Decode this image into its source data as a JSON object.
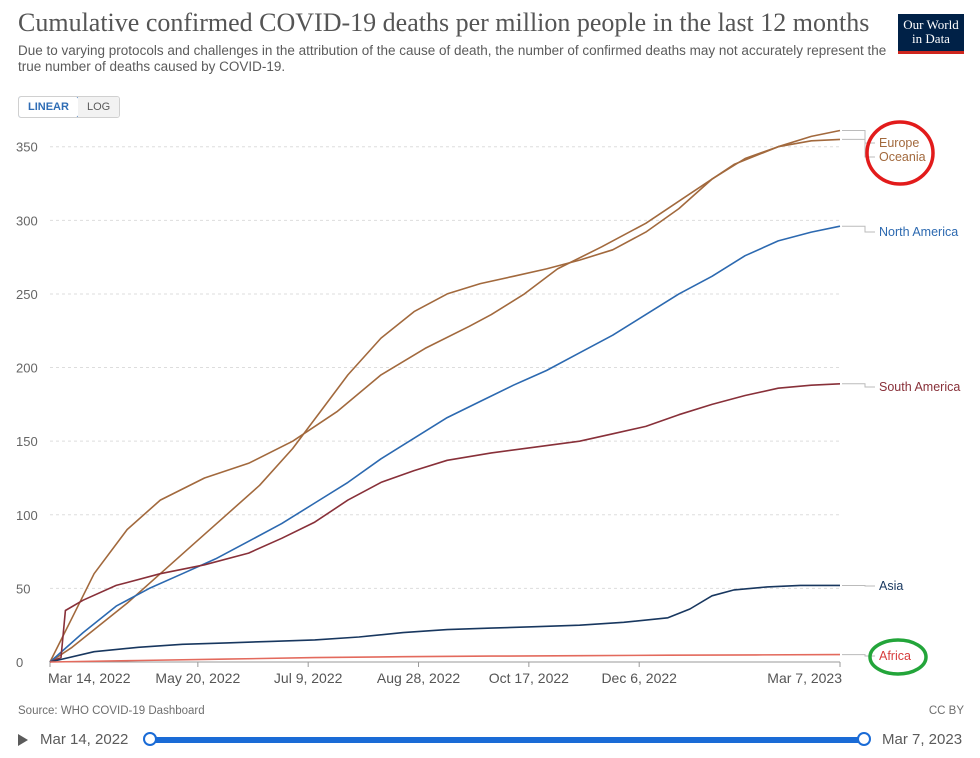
{
  "header": {
    "title": "Cumulative confirmed COVID-19 deaths per million people in the last 12 months",
    "subtitle": "Due to varying protocols and challenges in the attribution of the cause of death, the number of confirmed deaths may not accurately represent the true number of deaths caused by COVID-19.",
    "logo_line1": "Our World",
    "logo_line2": "in Data"
  },
  "controls": {
    "linear_label": "LINEAR",
    "log_label": "LOG",
    "active": "linear"
  },
  "footer": {
    "source": "Source: WHO COVID-19 Dashboard",
    "license": "CC BY"
  },
  "timeline": {
    "start_label": "Mar 14, 2022",
    "end_label": "Mar 7, 2023",
    "start_value": 0,
    "end_value": 1
  },
  "annotations": {
    "circle_red_color": "#e21b1b",
    "circle_green_color": "#23a53a"
  },
  "chart_data": {
    "type": "line",
    "title": "Cumulative confirmed COVID-19 deaths per million people in the last 12 months",
    "xlabel": "",
    "ylabel": "",
    "xlim": [
      0,
      358
    ],
    "ylim": [
      0,
      360
    ],
    "grid": true,
    "y_ticks": [
      0,
      50,
      100,
      150,
      200,
      250,
      300,
      350
    ],
    "x_ticks": [
      {
        "day": 0,
        "label": "Mar 14, 2022"
      },
      {
        "day": 67,
        "label": "May 20, 2022"
      },
      {
        "day": 117,
        "label": "Jul 9, 2022"
      },
      {
        "day": 167,
        "label": "Aug 28, 2022"
      },
      {
        "day": 217,
        "label": "Oct 17, 2022"
      },
      {
        "day": 267,
        "label": "Dec 6, 2022"
      },
      {
        "day": 358,
        "label": "Mar 7, 2023"
      }
    ],
    "series": [
      {
        "name": "Europe",
        "color": "#a2693d",
        "label_color": "#a2693d",
        "end_value": 361,
        "points": [
          [
            0,
            0
          ],
          [
            10,
            30
          ],
          [
            20,
            60
          ],
          [
            35,
            90
          ],
          [
            50,
            110
          ],
          [
            70,
            125
          ],
          [
            90,
            135
          ],
          [
            110,
            150
          ],
          [
            130,
            170
          ],
          [
            150,
            195
          ],
          [
            170,
            213
          ],
          [
            190,
            228
          ],
          [
            200,
            236
          ],
          [
            215,
            250
          ],
          [
            230,
            267
          ],
          [
            250,
            282
          ],
          [
            270,
            298
          ],
          [
            290,
            318
          ],
          [
            310,
            338
          ],
          [
            330,
            350
          ],
          [
            345,
            357
          ],
          [
            358,
            361
          ]
        ]
      },
      {
        "name": "Oceania",
        "color": "#a2693d",
        "label_color": "#a2693d",
        "end_value": 355,
        "points": [
          [
            0,
            0
          ],
          [
            10,
            10
          ],
          [
            20,
            22
          ],
          [
            35,
            40
          ],
          [
            50,
            60
          ],
          [
            65,
            80
          ],
          [
            80,
            100
          ],
          [
            95,
            120
          ],
          [
            110,
            145
          ],
          [
            125,
            175
          ],
          [
            135,
            195
          ],
          [
            150,
            220
          ],
          [
            165,
            238
          ],
          [
            180,
            250
          ],
          [
            195,
            257
          ],
          [
            210,
            262
          ],
          [
            225,
            267
          ],
          [
            240,
            273
          ],
          [
            255,
            280
          ],
          [
            270,
            292
          ],
          [
            285,
            308
          ],
          [
            300,
            328
          ],
          [
            315,
            342
          ],
          [
            330,
            350
          ],
          [
            345,
            354
          ],
          [
            358,
            355
          ]
        ]
      },
      {
        "name": "North America",
        "color": "#2c69b0",
        "label_color": "#2c69b0",
        "end_value": 296,
        "points": [
          [
            0,
            0
          ],
          [
            15,
            20
          ],
          [
            30,
            38
          ],
          [
            45,
            50
          ],
          [
            60,
            60
          ],
          [
            75,
            70
          ],
          [
            90,
            82
          ],
          [
            105,
            94
          ],
          [
            120,
            108
          ],
          [
            135,
            122
          ],
          [
            150,
            138
          ],
          [
            165,
            152
          ],
          [
            180,
            166
          ],
          [
            195,
            177
          ],
          [
            210,
            188
          ],
          [
            225,
            198
          ],
          [
            240,
            210
          ],
          [
            255,
            222
          ],
          [
            270,
            236
          ],
          [
            285,
            250
          ],
          [
            300,
            262
          ],
          [
            315,
            276
          ],
          [
            330,
            286
          ],
          [
            345,
            292
          ],
          [
            358,
            296
          ]
        ]
      },
      {
        "name": "South America",
        "color": "#883039",
        "label_color": "#883039",
        "end_value": 189,
        "points": [
          [
            0,
            0
          ],
          [
            5,
            3
          ],
          [
            7,
            35
          ],
          [
            15,
            42
          ],
          [
            30,
            52
          ],
          [
            50,
            60
          ],
          [
            70,
            66
          ],
          [
            90,
            74
          ],
          [
            105,
            84
          ],
          [
            120,
            95
          ],
          [
            135,
            110
          ],
          [
            150,
            122
          ],
          [
            165,
            130
          ],
          [
            180,
            137
          ],
          [
            200,
            142
          ],
          [
            220,
            146
          ],
          [
            240,
            150
          ],
          [
            255,
            155
          ],
          [
            270,
            160
          ],
          [
            285,
            168
          ],
          [
            300,
            175
          ],
          [
            315,
            181
          ],
          [
            330,
            186
          ],
          [
            345,
            188
          ],
          [
            358,
            189
          ]
        ]
      },
      {
        "name": "Asia",
        "color": "#18375f",
        "label_color": "#18375f",
        "end_value": 52,
        "points": [
          [
            0,
            0
          ],
          [
            20,
            7
          ],
          [
            40,
            10
          ],
          [
            60,
            12
          ],
          [
            80,
            13
          ],
          [
            100,
            14
          ],
          [
            120,
            15
          ],
          [
            140,
            17
          ],
          [
            160,
            20
          ],
          [
            180,
            22
          ],
          [
            200,
            23
          ],
          [
            220,
            24
          ],
          [
            240,
            25
          ],
          [
            260,
            27
          ],
          [
            280,
            30
          ],
          [
            290,
            36
          ],
          [
            300,
            45
          ],
          [
            310,
            49
          ],
          [
            325,
            51
          ],
          [
            340,
            52
          ],
          [
            358,
            52
          ]
        ]
      },
      {
        "name": "Africa",
        "color": "#e36a5d",
        "label_color": "#d73c3c",
        "end_value": 5,
        "points": [
          [
            0,
            0
          ],
          [
            40,
            1
          ],
          [
            80,
            2
          ],
          [
            120,
            3
          ],
          [
            160,
            3.6
          ],
          [
            200,
            4
          ],
          [
            240,
            4.3
          ],
          [
            280,
            4.6
          ],
          [
            320,
            4.8
          ],
          [
            358,
            5
          ]
        ]
      }
    ]
  }
}
